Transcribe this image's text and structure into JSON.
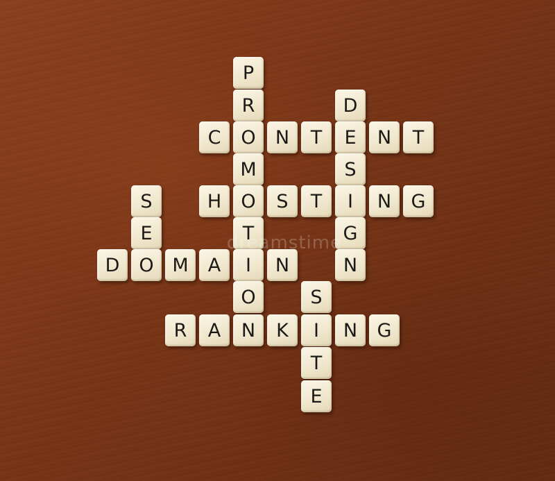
{
  "watermark": "dreamstime",
  "words": {
    "promotion": "PROMOTION",
    "design": "DESIGN",
    "content": "CONTENT",
    "seo": "SEO",
    "hosting": "HOSTING",
    "domain": "DOMAIN",
    "site": "SITE",
    "ranking": "RANKING"
  },
  "tiles": {
    "r0c1": "P",
    "r1c1": "R",
    "r1c4": "D",
    "r2c0": "C",
    "r2c1": "O",
    "r2c2": "N",
    "r2c3": "T",
    "r2c4": "E",
    "r2c5": "N",
    "r2c6": "T",
    "r3c1": "M",
    "r3c4": "S",
    "r4cm": "S",
    "r4c0": "H",
    "r4c1": "O",
    "r4c2": "S",
    "r4c3": "T",
    "r4c4": "I",
    "r4c5": "N",
    "r4c6": "G",
    "r5cm": "E",
    "r5c1": "T",
    "r5c4": "G",
    "r6a": "D",
    "r6b": "O",
    "r6c": "M",
    "r6d": "A",
    "r6e": "I",
    "r6f": "N",
    "r6c4": "N",
    "r7c1": "O",
    "r7c3": "S",
    "r8a": "R",
    "r8b": "A",
    "r8c": "N",
    "r8d": "K",
    "r8e": "I",
    "r8f": "N",
    "r8g": "G",
    "r9c3": "T",
    "r10c3": "E"
  }
}
